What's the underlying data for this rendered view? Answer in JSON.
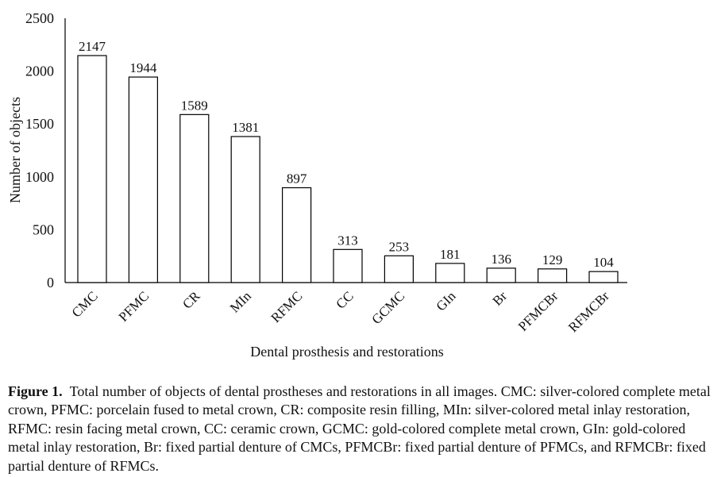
{
  "chart_data": {
    "type": "bar",
    "categories": [
      "CMC",
      "PFMC",
      "CR",
      "MIn",
      "RFMC",
      "CC",
      "GCMC",
      "GIn",
      "Br",
      "PFMCBr",
      "RFMCBr"
    ],
    "values": [
      2147,
      1944,
      1589,
      1381,
      897,
      313,
      253,
      181,
      136,
      129,
      104
    ],
    "data_labels": [
      "2147",
      "1944",
      "1589",
      "1381",
      "897",
      "313",
      "253",
      "181",
      "136",
      "129",
      "104"
    ],
    "xlabel": "Dental prosthesis and restorations",
    "ylabel": "Number of objects",
    "ylim": [
      0,
      2500
    ],
    "yticks": [
      0,
      500,
      1000,
      1500,
      2000,
      2500
    ],
    "ytick_labels": [
      "0",
      "500",
      "1000",
      "1500",
      "2000",
      "2500"
    ],
    "grid": false,
    "bar_fill": "#ffffff",
    "bar_stroke": "#000000"
  },
  "caption": {
    "label": "Figure 1.",
    "text": "Total number of objects of dental prostheses and restorations in all images. CMC: silver-colored complete metal crown, PFMC: porcelain fused to metal crown, CR: composite resin filling, MIn: silver-colored metal inlay restoration, RFMC: resin facing metal crown, CC: ceramic crown, GCMC: gold-colored complete metal crown, GIn: gold-colored metal inlay restoration, Br: fixed partial denture of CMCs, PFMCBr: fixed partial denture of PFMCs, and RFMCBr: fixed partial denture of RFMCs."
  }
}
